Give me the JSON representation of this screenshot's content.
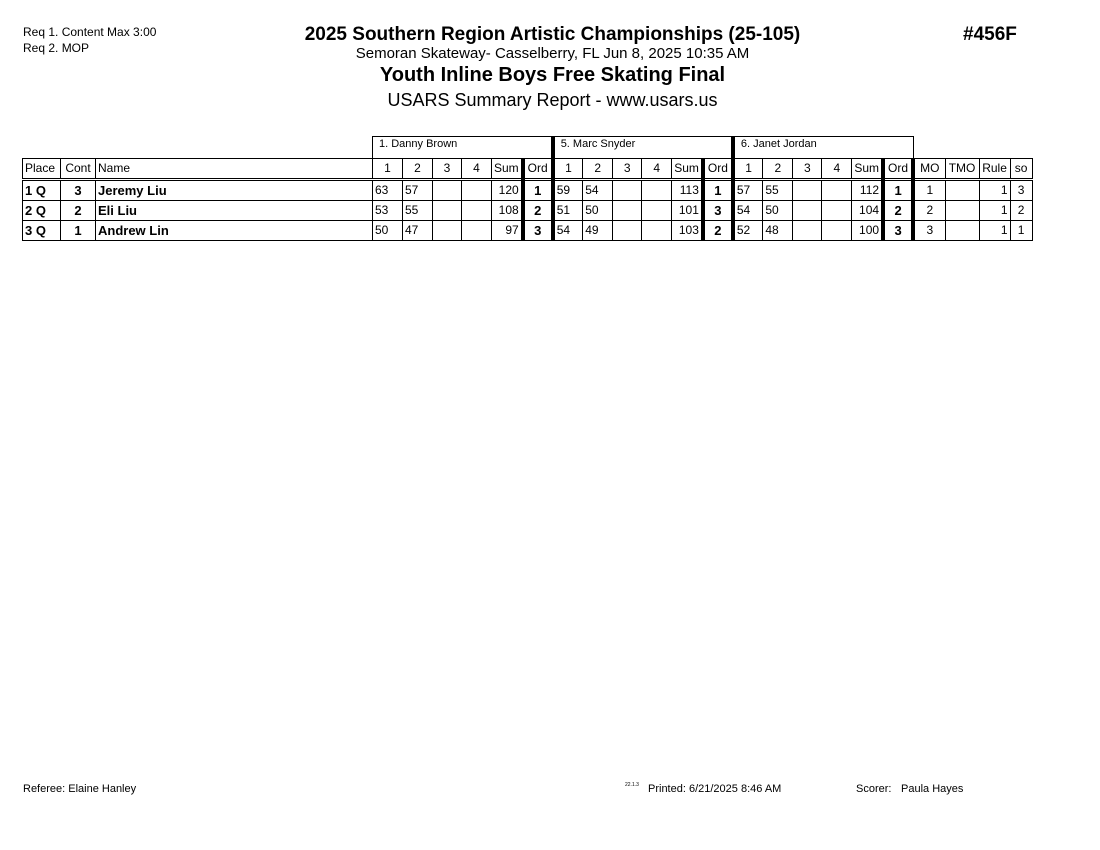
{
  "header": {
    "requirements": [
      "Req 1.  Content Max 3:00",
      "Req 2.  MOP"
    ],
    "title": "2025 Southern Region Artistic Championships (25-105)",
    "subtitle": "Semoran Skateway- Casselberry, FL  Jun 8, 2025  10:35 AM",
    "event": "Youth Inline Boys Free Skating Final",
    "report": "USARS Summary Report - www.usars.us",
    "event_code": "#456F"
  },
  "table": {
    "judges": [
      "1.  Danny Brown",
      "5.  Marc Snyder",
      "6.  Janet  Jordan"
    ],
    "columns": {
      "place": "Place",
      "cont": "Cont",
      "name": "Name",
      "j": [
        "1",
        "2",
        "3",
        "4",
        "Sum",
        "Ord"
      ],
      "mo": "MO",
      "tmo": "TMO",
      "rule": "Rule",
      "so": "so"
    },
    "rows": [
      {
        "place": "1 Q",
        "cont": "3",
        "name": "Jeremy Liu",
        "scores": [
          [
            "63",
            "57",
            "",
            "",
            "120",
            "1"
          ],
          [
            "59",
            "54",
            "",
            "",
            "113",
            "1"
          ],
          [
            "57",
            "55",
            "",
            "",
            "112",
            "1"
          ]
        ],
        "mo": "1",
        "tmo": "",
        "rule": "1",
        "so": "3"
      },
      {
        "place": "2 Q",
        "cont": "2",
        "name": "Eli Liu",
        "scores": [
          [
            "53",
            "55",
            "",
            "",
            "108",
            "2"
          ],
          [
            "51",
            "50",
            "",
            "",
            "101",
            "3"
          ],
          [
            "54",
            "50",
            "",
            "",
            "104",
            "2"
          ]
        ],
        "mo": "2",
        "tmo": "",
        "rule": "1",
        "so": "2"
      },
      {
        "place": "3 Q",
        "cont": "1",
        "name": "Andrew Lin",
        "scores": [
          [
            "50",
            "47",
            "",
            "",
            "97",
            "3"
          ],
          [
            "54",
            "49",
            "",
            "",
            "103",
            "2"
          ],
          [
            "52",
            "48",
            "",
            "",
            "100",
            "3"
          ]
        ],
        "mo": "3",
        "tmo": "",
        "rule": "1",
        "so": "1"
      }
    ]
  },
  "footer": {
    "referee": "Referee:  Elaine Hanley",
    "version": "22.1.3",
    "printed": "Printed:  6/21/2025  8:46 AM",
    "scorer_label": "Scorer:",
    "scorer": "Paula Hayes"
  }
}
